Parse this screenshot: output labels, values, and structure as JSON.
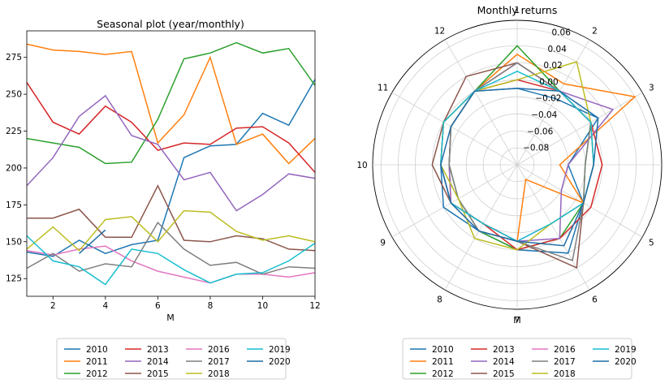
{
  "legend_years": [
    "2010",
    "2011",
    "2012",
    "2013",
    "2014",
    "2015",
    "2016",
    "2017",
    "2018",
    "2019",
    "2020"
  ],
  "palette": [
    "#1f77b4",
    "#ff7f0e",
    "#2ca02c",
    "#d62728",
    "#9467bd",
    "#8c564b",
    "#e377c2",
    "#7f7f7f",
    "#bcbd22",
    "#17becf",
    "#1f6fa6"
  ],
  "chart_data": [
    {
      "type": "line",
      "title": "Seasonal plot (year/monthly)",
      "xlabel": "M",
      "ylabel": "",
      "xlim": [
        1,
        12
      ],
      "ylim": [
        113,
        293
      ],
      "xticks": [
        2,
        4,
        6,
        8,
        10,
        12
      ],
      "yticks": [
        125,
        150,
        175,
        200,
        225,
        250,
        275
      ],
      "series": [
        {
          "name": "2010",
          "x": [
            1,
            2,
            3,
            4,
            5,
            6,
            7,
            8,
            9,
            10,
            11,
            12
          ],
          "values": [
            143,
            140,
            151,
            142,
            148,
            151,
            207,
            215,
            216,
            237,
            229,
            260
          ]
        },
        {
          "name": "2011",
          "x": [
            1,
            2,
            3,
            4,
            5,
            6,
            7,
            8,
            9,
            10,
            11,
            12
          ],
          "values": [
            284,
            280,
            279,
            277,
            279,
            217,
            236,
            275,
            216,
            223,
            203,
            220
          ]
        },
        {
          "name": "2012",
          "x": [
            1,
            2,
            3,
            4,
            5,
            6,
            7,
            8,
            9,
            10,
            11,
            12
          ],
          "values": [
            220,
            217,
            214,
            203,
            204,
            233,
            274,
            278,
            285,
            278,
            281,
            256
          ]
        },
        {
          "name": "2013",
          "x": [
            1,
            2,
            3,
            4,
            5,
            6,
            7,
            8,
            9,
            10,
            11,
            12
          ],
          "values": [
            258,
            231,
            223,
            242,
            231,
            212,
            217,
            216,
            227,
            228,
            217,
            197
          ]
        },
        {
          "name": "2014",
          "x": [
            1,
            2,
            3,
            4,
            5,
            6,
            7,
            8,
            9,
            10,
            11,
            12
          ],
          "values": [
            188,
            207,
            235,
            249,
            222,
            216,
            192,
            197,
            171,
            182,
            196,
            193
          ]
        },
        {
          "name": "2015",
          "x": [
            1,
            2,
            3,
            4,
            5,
            6,
            7,
            8,
            9,
            10,
            11,
            12
          ],
          "values": [
            166,
            166,
            172,
            153,
            153,
            188,
            151,
            150,
            154,
            152,
            145,
            144
          ]
        },
        {
          "name": "2016",
          "x": [
            1,
            2,
            3,
            4,
            5,
            6,
            7,
            8,
            9,
            10,
            11,
            12
          ],
          "values": [
            144,
            141,
            145,
            147,
            137,
            130,
            126,
            122,
            128,
            128,
            126,
            129
          ]
        },
        {
          "name": "2017",
          "x": [
            1,
            2,
            3,
            4,
            5,
            6,
            7,
            8,
            9,
            10,
            11,
            12
          ],
          "values": [
            132,
            142,
            130,
            135,
            133,
            163,
            145,
            134,
            136,
            128,
            133,
            132
          ]
        },
        {
          "name": "2018",
          "x": [
            1,
            2,
            3,
            4,
            5,
            6,
            7,
            8,
            9,
            10,
            11,
            12
          ],
          "values": [
            145,
            160,
            144,
            165,
            167,
            150,
            171,
            170,
            157,
            151,
            154,
            150
          ]
        },
        {
          "name": "2019",
          "x": [
            1,
            2,
            3,
            4,
            5,
            6,
            7,
            8,
            9,
            10,
            11,
            12
          ],
          "values": [
            154,
            137,
            133,
            121,
            145,
            142,
            131,
            122,
            128,
            129,
            137,
            149
          ]
        },
        {
          "name": "2020",
          "x": [
            3,
            4
          ],
          "values": [
            142,
            158
          ]
        }
      ],
      "legend": [
        "2010",
        "2011",
        "2012",
        "2013",
        "2014",
        "2015",
        "2016",
        "2017",
        "2018",
        "2019",
        "2020"
      ],
      "legend_position": "below"
    },
    {
      "type": "polar-line",
      "title": "Monthly returns",
      "xlabel": "M",
      "theta_labels": [
        "1",
        "2",
        "3",
        "4",
        "5",
        "6",
        "7",
        "8",
        "9",
        "10",
        "11",
        "12"
      ],
      "rlim": [
        -0.1,
        0.07
      ],
      "rticks": [
        -0.08,
        -0.06,
        -0.04,
        -0.02,
        0.0,
        0.02,
        0.04,
        0.06
      ],
      "rtick_labels": [
        "−0.08",
        "−0.06",
        "−0.04",
        "−0.02",
        "0.00",
        "0.02",
        "0.04",
        "0.06"
      ],
      "series": [
        {
          "name": "2010",
          "values": [
            -0.01,
            -0.01,
            0.01,
            -0.04,
            -0.01,
            0.02,
            0.0,
            -0.01,
            0.0,
            -0.01,
            0.0,
            0.0
          ]
        },
        {
          "name": "2011",
          "values": [
            0.03,
            0.01,
            0.06,
            -0.05,
            -0.01,
            -0.08,
            -0.01,
            -0.02,
            -0.01,
            -0.02,
            -0.01,
            0.0
          ]
        },
        {
          "name": "2012",
          "values": [
            0.04,
            0.0,
            0.0,
            -0.02,
            -0.01,
            0.0,
            0.0,
            -0.01,
            -0.02,
            -0.02,
            -0.01,
            0.0
          ]
        },
        {
          "name": "2013",
          "values": [
            0.0,
            0.0,
            0.0,
            0.0,
            0.0,
            0.0,
            0.0,
            -0.02,
            -0.01,
            -0.01,
            0.0,
            0.0
          ]
        },
        {
          "name": "2014",
          "values": [
            0.02,
            0.0,
            0.03,
            -0.04,
            -0.04,
            0.0,
            -0.01,
            -0.02,
            -0.01,
            -0.02,
            -0.01,
            0.0
          ]
        },
        {
          "name": "2015",
          "values": [
            0.02,
            0.0,
            0.0,
            -0.01,
            -0.01,
            0.04,
            -0.01,
            -0.02,
            -0.01,
            0.0,
            0.0,
            0.02
          ]
        },
        {
          "name": "2016",
          "values": [
            0.02,
            0.0,
            0.0,
            -0.01,
            -0.01,
            -0.02,
            -0.01,
            -0.01,
            -0.01,
            -0.01,
            0.0,
            0.0
          ]
        },
        {
          "name": "2017",
          "values": [
            0.02,
            0.0,
            0.0,
            -0.02,
            -0.01,
            0.03,
            -0.01,
            -0.01,
            -0.02,
            -0.02,
            -0.01,
            0.0
          ]
        },
        {
          "name": "2018",
          "values": [
            0.0,
            0.04,
            0.0,
            -0.01,
            -0.01,
            -0.02,
            0.0,
            0.0,
            -0.02,
            -0.01,
            0.0,
            0.0
          ]
        },
        {
          "name": "2019",
          "values": [
            0.01,
            0.0,
            0.0,
            -0.01,
            -0.01,
            -0.02,
            -0.01,
            -0.02,
            -0.01,
            -0.01,
            0.0,
            0.0
          ]
        },
        {
          "name": "2020",
          "values": [
            -0.01,
            0.0,
            0.01,
            -0.01,
            -0.01,
            0.01,
            -0.01,
            -0.01,
            -0.01,
            -0.01,
            -0.01,
            0.0
          ]
        }
      ],
      "legend": [
        "2010",
        "2011",
        "2012",
        "2013",
        "2014",
        "2015",
        "2016",
        "2017",
        "2018",
        "2019",
        "2020"
      ],
      "legend_position": "below"
    }
  ]
}
